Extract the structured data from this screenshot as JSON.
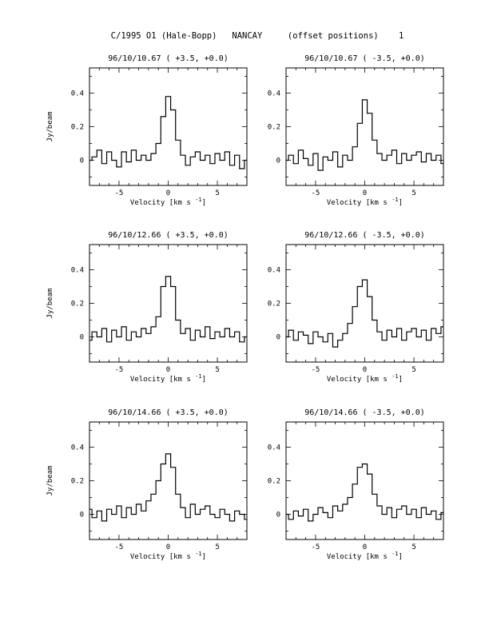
{
  "figure": {
    "title": "C/1995 O1 (Hale-Bopp)   NANCAY     (offset positions)    1"
  },
  "chart_data": [
    {
      "type": "line",
      "step": true,
      "title": "96/10/10.67  ( +3.5, +0.0)",
      "xlabel": "Velocity [km s",
      "xlabel_sup": "-1",
      "xlabel_suffix": "]",
      "ylabel": "Jy/beam",
      "xlim": [
        -8,
        8
      ],
      "ylim": [
        -0.15,
        0.55
      ],
      "xticks": [
        -5,
        0,
        5
      ],
      "yticks": [
        0,
        0.2,
        0.4
      ],
      "grid": false,
      "series": [
        {
          "x": [
            -8.0,
            -7.5,
            -7.0,
            -6.5,
            -6.0,
            -5.5,
            -5.0,
            -4.5,
            -4.0,
            -3.5,
            -3.0,
            -2.5,
            -2.0,
            -1.5,
            -1.0,
            -0.5,
            0.0,
            0.5,
            1.0,
            1.5,
            2.0,
            2.5,
            3.0,
            3.5,
            4.0,
            4.5,
            5.0,
            5.5,
            6.0,
            6.5,
            7.0,
            7.5,
            8.0
          ],
          "y": [
            0.0,
            0.02,
            0.06,
            -0.02,
            0.05,
            0.0,
            -0.04,
            0.05,
            -0.01,
            0.06,
            0.0,
            0.03,
            0.0,
            0.04,
            0.1,
            0.26,
            0.38,
            0.3,
            0.12,
            0.03,
            -0.03,
            0.02,
            0.05,
            0.0,
            0.03,
            -0.02,
            0.04,
            0.0,
            0.05,
            -0.03,
            0.03,
            -0.05,
            0.0
          ]
        }
      ]
    },
    {
      "type": "line",
      "step": true,
      "title": "96/10/10.67  ( -3.5, +0.0)",
      "xlabel": "Velocity [km s",
      "xlabel_sup": "-1",
      "xlabel_suffix": "]",
      "ylabel": "",
      "xlim": [
        -8,
        8
      ],
      "ylim": [
        -0.15,
        0.55
      ],
      "xticks": [
        -5,
        0,
        5
      ],
      "yticks": [
        0,
        0.2,
        0.4
      ],
      "grid": false,
      "series": [
        {
          "x": [
            -8.0,
            -7.5,
            -7.0,
            -6.5,
            -6.0,
            -5.5,
            -5.0,
            -4.5,
            -4.0,
            -3.5,
            -3.0,
            -2.5,
            -2.0,
            -1.5,
            -1.0,
            -0.5,
            0.0,
            0.5,
            1.0,
            1.5,
            2.0,
            2.5,
            3.0,
            3.5,
            4.0,
            4.5,
            5.0,
            5.5,
            6.0,
            6.5,
            7.0,
            7.5,
            8.0
          ],
          "y": [
            0.0,
            0.03,
            -0.02,
            0.06,
            0.01,
            -0.03,
            0.04,
            -0.06,
            0.02,
            0.0,
            0.05,
            -0.04,
            0.03,
            0.0,
            0.08,
            0.22,
            0.36,
            0.28,
            0.12,
            0.04,
            0.0,
            0.03,
            0.06,
            -0.02,
            0.04,
            0.0,
            0.03,
            0.05,
            -0.01,
            0.04,
            0.0,
            0.03,
            -0.02
          ]
        }
      ]
    },
    {
      "type": "line",
      "step": true,
      "title": "96/10/12.66  ( +3.5, +0.0)",
      "xlabel": "Velocity [km s",
      "xlabel_sup": "-1",
      "xlabel_suffix": "]",
      "ylabel": "Jy/beam",
      "xlim": [
        -8,
        8
      ],
      "ylim": [
        -0.15,
        0.55
      ],
      "xticks": [
        -5,
        0,
        5
      ],
      "yticks": [
        0,
        0.2,
        0.4
      ],
      "grid": false,
      "series": [
        {
          "x": [
            -8.0,
            -7.5,
            -7.0,
            -6.5,
            -6.0,
            -5.5,
            -5.0,
            -4.5,
            -4.0,
            -3.5,
            -3.0,
            -2.5,
            -2.0,
            -1.5,
            -1.0,
            -0.5,
            0.0,
            0.5,
            1.0,
            1.5,
            2.0,
            2.5,
            3.0,
            3.5,
            4.0,
            4.5,
            5.0,
            5.5,
            6.0,
            6.5,
            7.0,
            7.5,
            8.0
          ],
          "y": [
            -0.02,
            0.03,
            0.0,
            0.05,
            -0.03,
            0.04,
            0.0,
            0.06,
            -0.02,
            0.03,
            0.0,
            0.05,
            0.02,
            0.06,
            0.12,
            0.3,
            0.36,
            0.3,
            0.1,
            0.02,
            0.05,
            -0.02,
            0.04,
            0.0,
            0.06,
            -0.01,
            0.03,
            0.0,
            0.05,
            0.0,
            0.03,
            -0.03,
            0.0
          ]
        }
      ]
    },
    {
      "type": "line",
      "step": true,
      "title": "96/10/12.66  ( -3.5, +0.0)",
      "xlabel": "Velocity [km s",
      "xlabel_sup": "-1",
      "xlabel_suffix": "]",
      "ylabel": "",
      "xlim": [
        -8,
        8
      ],
      "ylim": [
        -0.15,
        0.55
      ],
      "xticks": [
        -5,
        0,
        5
      ],
      "yticks": [
        0,
        0.2,
        0.4
      ],
      "grid": false,
      "series": [
        {
          "x": [
            -8.0,
            -7.5,
            -7.0,
            -6.5,
            -6.0,
            -5.5,
            -5.0,
            -4.5,
            -4.0,
            -3.5,
            -3.0,
            -2.5,
            -2.0,
            -1.5,
            -1.0,
            -0.5,
            0.0,
            0.5,
            1.0,
            1.5,
            2.0,
            2.5,
            3.0,
            3.5,
            4.0,
            4.5,
            5.0,
            5.5,
            6.0,
            6.5,
            7.0,
            7.5,
            8.0
          ],
          "y": [
            0.0,
            0.04,
            -0.02,
            0.03,
            0.01,
            -0.04,
            0.03,
            0.0,
            -0.03,
            0.02,
            -0.06,
            -0.02,
            0.02,
            0.08,
            0.18,
            0.3,
            0.34,
            0.24,
            0.1,
            0.03,
            -0.02,
            0.04,
            0.0,
            0.05,
            -0.02,
            0.03,
            0.05,
            0.0,
            0.04,
            -0.02,
            0.05,
            0.02,
            0.06
          ]
        }
      ]
    },
    {
      "type": "line",
      "step": true,
      "title": "96/10/14.66  ( +3.5, +0.0)",
      "xlabel": "Velocity [km s",
      "xlabel_sup": "-1",
      "xlabel_suffix": "]",
      "ylabel": "Jy/beam",
      "xlim": [
        -8,
        8
      ],
      "ylim": [
        -0.15,
        0.55
      ],
      "xticks": [
        -5,
        0,
        5
      ],
      "yticks": [
        0,
        0.2,
        0.4
      ],
      "grid": false,
      "series": [
        {
          "x": [
            -8.0,
            -7.5,
            -7.0,
            -6.5,
            -6.0,
            -5.5,
            -5.0,
            -4.5,
            -4.0,
            -3.5,
            -3.0,
            -2.5,
            -2.0,
            -1.5,
            -1.0,
            -0.5,
            0.0,
            0.5,
            1.0,
            1.5,
            2.0,
            2.5,
            3.0,
            3.5,
            4.0,
            4.5,
            5.0,
            5.5,
            6.0,
            6.5,
            7.0,
            7.5,
            8.0
          ],
          "y": [
            0.03,
            -0.02,
            0.02,
            -0.04,
            0.03,
            0.0,
            0.05,
            -0.02,
            0.04,
            0.0,
            0.06,
            0.02,
            0.08,
            0.12,
            0.2,
            0.3,
            0.36,
            0.28,
            0.12,
            0.04,
            -0.02,
            0.06,
            0.0,
            0.03,
            0.05,
            0.0,
            -0.02,
            0.03,
            0.0,
            -0.04,
            0.02,
            0.0,
            -0.03
          ]
        }
      ]
    },
    {
      "type": "line",
      "step": true,
      "title": "96/10/14.66  ( -3.5, +0.0)",
      "xlabel": "Velocity [km s",
      "xlabel_sup": "-1",
      "xlabel_suffix": "]",
      "ylabel": "",
      "xlim": [
        -8,
        8
      ],
      "ylim": [
        -0.15,
        0.55
      ],
      "xticks": [
        -5,
        0,
        5
      ],
      "yticks": [
        0,
        0.2,
        0.4
      ],
      "grid": false,
      "series": [
        {
          "x": [
            -8.0,
            -7.5,
            -7.0,
            -6.5,
            -6.0,
            -5.5,
            -5.0,
            -4.5,
            -4.0,
            -3.5,
            -3.0,
            -2.5,
            -2.0,
            -1.5,
            -1.0,
            -0.5,
            0.0,
            0.5,
            1.0,
            1.5,
            2.0,
            2.5,
            3.0,
            3.5,
            4.0,
            4.5,
            5.0,
            5.5,
            6.0,
            6.5,
            7.0,
            7.5,
            8.0
          ],
          "y": [
            0.0,
            -0.03,
            0.02,
            -0.01,
            0.03,
            -0.04,
            0.0,
            0.04,
            0.01,
            -0.02,
            0.05,
            0.02,
            0.06,
            0.1,
            0.18,
            0.28,
            0.3,
            0.24,
            0.12,
            0.05,
            0.0,
            0.04,
            -0.02,
            0.03,
            0.05,
            0.0,
            0.03,
            -0.02,
            0.04,
            0.0,
            0.02,
            -0.03,
            0.01
          ]
        }
      ]
    }
  ]
}
